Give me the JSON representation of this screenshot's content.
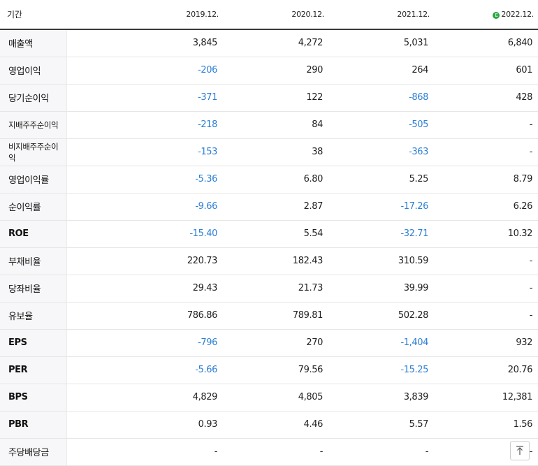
{
  "header": {
    "label": "기간",
    "periods": [
      "2019.12.",
      "2020.12.",
      "2021.12.",
      "2022.12."
    ],
    "estimate_icon": "E"
  },
  "rows": [
    {
      "label": "매출액",
      "values": [
        "3,845",
        "4,272",
        "5,031",
        "6,840"
      ]
    },
    {
      "label": "영업이익",
      "values": [
        "-206",
        "290",
        "264",
        "601"
      ]
    },
    {
      "label": "당기순이익",
      "values": [
        "-371",
        "122",
        "-868",
        "428"
      ]
    },
    {
      "label": "지배주주순이익",
      "values": [
        "-218",
        "84",
        "-505",
        "-"
      ]
    },
    {
      "label": "비지배주주순이익",
      "values": [
        "-153",
        "38",
        "-363",
        "-"
      ]
    },
    {
      "label": "영업이익률",
      "values": [
        "-5.36",
        "6.80",
        "5.25",
        "8.79"
      ]
    },
    {
      "label": "순이익률",
      "values": [
        "-9.66",
        "2.87",
        "-17.26",
        "6.26"
      ]
    },
    {
      "label": "ROE",
      "values": [
        "-15.40",
        "5.54",
        "-32.71",
        "10.32"
      ]
    },
    {
      "label": "부채비율",
      "values": [
        "220.73",
        "182.43",
        "310.59",
        "-"
      ]
    },
    {
      "label": "당좌비율",
      "values": [
        "29.43",
        "21.73",
        "39.99",
        "-"
      ]
    },
    {
      "label": "유보율",
      "values": [
        "786.86",
        "789.81",
        "502.28",
        "-"
      ]
    },
    {
      "label": "EPS",
      "values": [
        "-796",
        "270",
        "-1,404",
        "932"
      ]
    },
    {
      "label": "PER",
      "values": [
        "-5.66",
        "79.56",
        "-15.25",
        "20.76"
      ]
    },
    {
      "label": "BPS",
      "values": [
        "4,829",
        "4,805",
        "3,839",
        "12,381"
      ]
    },
    {
      "label": "PBR",
      "values": [
        "0.93",
        "4.46",
        "5.57",
        "1.56"
      ]
    },
    {
      "label": "주당배당금",
      "values": [
        "-",
        "-",
        "-",
        "-"
      ]
    }
  ],
  "colors": {
    "negative": "#2d7fd6",
    "estimate": "#27a744"
  },
  "icons": {
    "scroll_top": "arrow-up-to-top-icon"
  }
}
